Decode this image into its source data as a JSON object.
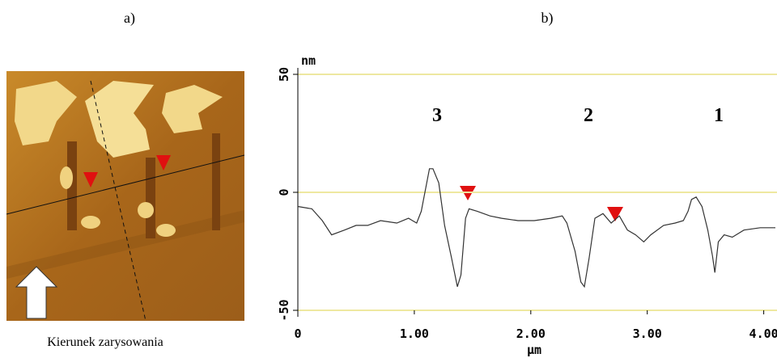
{
  "figure": {
    "label_a": "a)",
    "label_b": "b)",
    "caption": "Kierunek zarysowania"
  },
  "chart_data": {
    "type": "line",
    "ylabel": "nm",
    "xlabel": "μm",
    "annotations": [
      "3",
      "2",
      "1"
    ],
    "x": [
      0,
      0.12,
      0.21,
      0.29,
      0.4,
      0.5,
      0.6,
      0.71,
      0.85,
      0.95,
      1.02,
      1.06,
      1.13,
      1.16,
      1.21,
      1.26,
      1.32,
      1.37,
      1.4,
      1.44,
      1.47,
      1.54,
      1.65,
      1.75,
      1.89,
      2.03,
      2.17,
      2.27,
      2.31,
      2.38,
      2.43,
      2.46,
      2.5,
      2.55,
      2.62,
      2.69,
      2.76,
      2.83,
      2.9,
      2.97,
      3.03,
      3.14,
      3.24,
      3.31,
      3.35,
      3.38,
      3.42,
      3.47,
      3.52,
      3.56,
      3.58,
      3.61,
      3.66,
      3.73,
      3.83,
      3.97,
      4.1
    ],
    "values": [
      -6,
      -7,
      -12,
      -18,
      -16,
      -14,
      -14,
      -12,
      -13,
      -11,
      -13,
      -8,
      10,
      10,
      4,
      -14,
      -28,
      -40,
      -35,
      -11,
      -7,
      -8,
      -10,
      -11,
      -12,
      -12,
      -11,
      -10,
      -13,
      -25,
      -38,
      -40,
      -28,
      -11,
      -9,
      -13,
      -10,
      -16,
      -18,
      -21,
      -18,
      -14,
      -13,
      -12,
      -8,
      -3,
      -2,
      -6,
      -16,
      -27,
      -34,
      -21,
      -18,
      -19,
      -16,
      -15,
      -15
    ],
    "color": "#333333",
    "xlim": [
      0,
      4.1
    ],
    "ylim": [
      -50,
      50
    ],
    "xticks": [
      0,
      {
        "value": 1,
        "label": "1.00"
      },
      {
        "value": 2,
        "label": "2.00"
      },
      {
        "value": 3,
        "label": "3.00"
      },
      {
        "value": 4,
        "label": "4.00"
      }
    ],
    "yticks": [
      -50,
      0,
      50
    ],
    "grid": true,
    "grid_color": "#eee8a0"
  }
}
